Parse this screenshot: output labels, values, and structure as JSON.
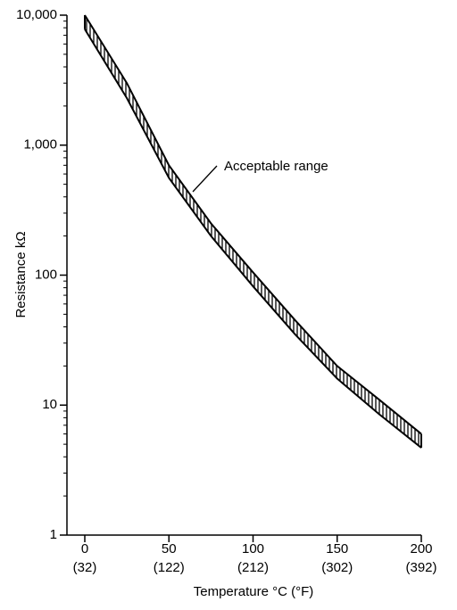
{
  "chart_data": {
    "type": "band",
    "x_label": "Temperature °C (°F)",
    "y_label": "Resistance kΩ",
    "annotation": "Acceptable range",
    "x": [
      0,
      25,
      50,
      75,
      100,
      125,
      150,
      175,
      200
    ],
    "series": [
      {
        "color": "#000000",
        "values": [
          10000,
          3000,
          700,
          250,
          105,
          45,
          20,
          11,
          6
        ]
      },
      {
        "color": "#000000",
        "values": [
          7800,
          2300,
          560,
          200,
          82,
          35,
          16,
          8.5,
          4.7
        ]
      }
    ],
    "xlim": [
      0,
      200
    ],
    "xticks": [
      0,
      50,
      100,
      150,
      200
    ],
    "xtick_sublabels": [
      "(32)",
      "(122)",
      "(212)",
      "(302)",
      "(392)"
    ],
    "ylim": [
      1,
      10000
    ],
    "ylog": true,
    "yticks": [
      1,
      10,
      100,
      {
        "value": 1000,
        "label": "1,000"
      },
      {
        "value": 10000,
        "label": "10,000"
      }
    ],
    "yminorticks": [
      2,
      3,
      4,
      5,
      6,
      7,
      8,
      9,
      20,
      30,
      40,
      50,
      60,
      70,
      80,
      90,
      200,
      300,
      400,
      500,
      600,
      700,
      800,
      900,
      2000,
      3000,
      4000,
      5000,
      6000,
      7000,
      8000,
      9000
    ],
    "hatch": true
  }
}
